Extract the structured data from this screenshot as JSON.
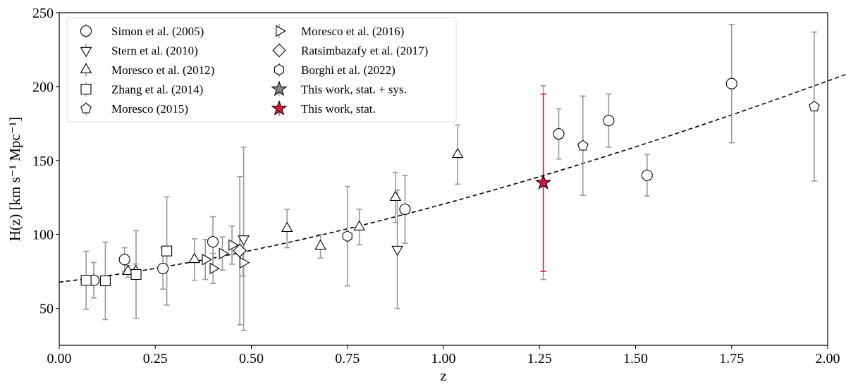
{
  "chart_data": {
    "type": "scatter",
    "xlabel": "z",
    "ylabel": "H(z) [km s⁻¹ Mpc⁻¹]",
    "xlim": [
      0,
      2
    ],
    "ylim": [
      25,
      250
    ],
    "xticks": [
      "0.00",
      "0.25",
      "0.50",
      "0.75",
      "1.00",
      "1.25",
      "1.50",
      "1.75",
      "2.00"
    ],
    "yticks": [
      "50",
      "100",
      "150",
      "200",
      "250"
    ],
    "legend_placement": "top-left",
    "model_curve": {
      "style": "dashed",
      "H0": 67.7,
      "Om": 0.31
    },
    "errorbar_color": "#999999",
    "highlight_color": "#d6173f",
    "series": [
      {
        "name": "Simon et al. (2005)",
        "marker": "circle",
        "points": [
          [
            0.09,
            69,
            12
          ],
          [
            0.17,
            83,
            8
          ],
          [
            0.27,
            77,
            14
          ],
          [
            0.4,
            95,
            17
          ],
          [
            0.9,
            117,
            23
          ],
          [
            1.3,
            168,
            17
          ],
          [
            1.43,
            177,
            18
          ],
          [
            1.53,
            140,
            14
          ],
          [
            1.75,
            202,
            40
          ]
        ]
      },
      {
        "name": "Stern et al. (2010)",
        "marker": "triangle-down",
        "points": [
          [
            0.48,
            97,
            62
          ],
          [
            0.88,
            90,
            40
          ]
        ]
      },
      {
        "name": "Moresco et al. (2012)",
        "marker": "triangle-up",
        "points": [
          [
            0.179,
            75,
            4
          ],
          [
            0.199,
            75,
            5
          ],
          [
            0.352,
            83,
            14
          ],
          [
            0.593,
            104,
            13
          ],
          [
            0.68,
            92,
            8
          ],
          [
            0.781,
            105,
            12
          ],
          [
            0.875,
            125,
            17
          ],
          [
            1.037,
            154,
            20
          ]
        ]
      },
      {
        "name": "Zhang et al. (2014)",
        "marker": "square",
        "points": [
          [
            0.07,
            69,
            19.6
          ],
          [
            0.12,
            68.6,
            26.2
          ],
          [
            0.2,
            72.9,
            29.6
          ],
          [
            0.28,
            88.8,
            36.6
          ]
        ]
      },
      {
        "name": "Moresco (2015)",
        "marker": "pentagon",
        "points": [
          [
            1.363,
            160,
            33.6
          ],
          [
            1.965,
            186.5,
            50.4
          ]
        ]
      },
      {
        "name": "Moresco et al. (2016)",
        "marker": "triangle-right",
        "points": [
          [
            0.3802,
            83,
            13.5
          ],
          [
            0.4004,
            77,
            10.2
          ],
          [
            0.4247,
            87.1,
            11.2
          ],
          [
            0.4497,
            92.8,
            12.9
          ],
          [
            0.4783,
            80.9,
            9
          ]
        ]
      },
      {
        "name": "Ratsimbazafy et al. (2017)",
        "marker": "diamond",
        "points": [
          [
            0.47,
            89,
            50
          ]
        ]
      },
      {
        "name": "Borghi et al. (2022)",
        "marker": "hexagon",
        "points": [
          [
            0.75,
            98.8,
            33.6
          ]
        ]
      },
      {
        "name": "This work, stat. + sys.",
        "marker": "star-gray",
        "points": [
          [
            1.26,
            135,
            65.5
          ]
        ]
      },
      {
        "name": "This work, stat.",
        "marker": "star-red",
        "points": [
          [
            1.26,
            135,
            60
          ]
        ]
      }
    ]
  }
}
